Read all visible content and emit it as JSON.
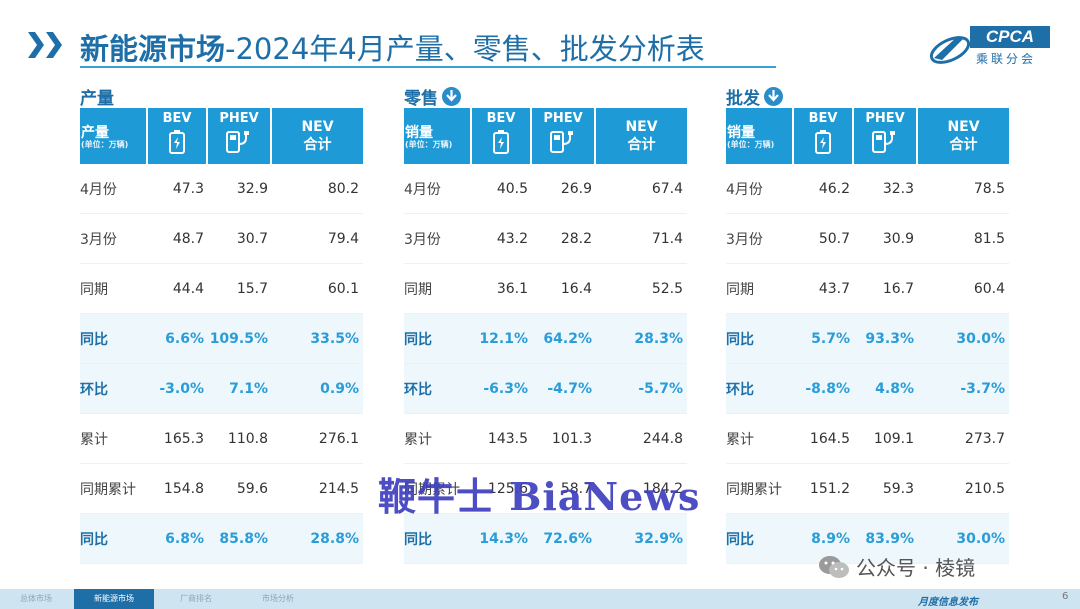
{
  "header": {
    "title_bold": "新能源市场",
    "title_rest": "-2024年4月产量、零售、批发分析表"
  },
  "logo": {
    "text": "CPCA",
    "sub": "乘联分会"
  },
  "colors": {
    "accent": "#1e9ad6",
    "title": "#1e6fa8",
    "highlight_text": "#2a9dd8"
  },
  "columns": {
    "bev": "BEV",
    "phev": "PHEV",
    "nev_top": "NEV",
    "nev_bottom": "合计",
    "unit": "(单位：万辆)"
  },
  "panels": [
    {
      "title": "产量",
      "has_down_icon": false,
      "header_label": "产量",
      "rows": [
        {
          "label": "4月份",
          "bev": "47.3",
          "phev": "32.9",
          "nev": "80.2"
        },
        {
          "label": "3月份",
          "bev": "48.7",
          "phev": "30.7",
          "nev": "79.4"
        },
        {
          "label": "同期",
          "bev": "44.4",
          "phev": "15.7",
          "nev": "60.1"
        },
        {
          "label": "同比",
          "bev": "6.6%",
          "phev": "109.5%",
          "nev": "33.5%"
        },
        {
          "label": "环比",
          "bev": "-3.0%",
          "phev": "7.1%",
          "nev": "0.9%"
        },
        {
          "label": "累计",
          "bev": "165.3",
          "phev": "110.8",
          "nev": "276.1"
        },
        {
          "label": "同期累计",
          "bev": "154.8",
          "phev": "59.6",
          "nev": "214.5"
        },
        {
          "label": "同比",
          "bev": "6.8%",
          "phev": "85.8%",
          "nev": "28.8%"
        }
      ]
    },
    {
      "title": "零售",
      "has_down_icon": true,
      "header_label": "销量",
      "rows": [
        {
          "label": "4月份",
          "bev": "40.5",
          "phev": "26.9",
          "nev": "67.4"
        },
        {
          "label": "3月份",
          "bev": "43.2",
          "phev": "28.2",
          "nev": "71.4"
        },
        {
          "label": "同期",
          "bev": "36.1",
          "phev": "16.4",
          "nev": "52.5"
        },
        {
          "label": "同比",
          "bev": "12.1%",
          "phev": "64.2%",
          "nev": "28.3%"
        },
        {
          "label": "环比",
          "bev": "-6.3%",
          "phev": "-4.7%",
          "nev": "-5.7%"
        },
        {
          "label": "累计",
          "bev": "143.5",
          "phev": "101.3",
          "nev": "244.8"
        },
        {
          "label": "同期累计",
          "bev": "125.6",
          "phev": "58.7",
          "nev": "184.2"
        },
        {
          "label": "同比",
          "bev": "14.3%",
          "phev": "72.6%",
          "nev": "32.9%"
        }
      ]
    },
    {
      "title": "批发",
      "has_down_icon": true,
      "header_label": "销量",
      "rows": [
        {
          "label": "4月份",
          "bev": "46.2",
          "phev": "32.3",
          "nev": "78.5"
        },
        {
          "label": "3月份",
          "bev": "50.7",
          "phev": "30.9",
          "nev": "81.5"
        },
        {
          "label": "同期",
          "bev": "43.7",
          "phev": "16.7",
          "nev": "60.4"
        },
        {
          "label": "同比",
          "bev": "5.7%",
          "phev": "93.3%",
          "nev": "30.0%"
        },
        {
          "label": "环比",
          "bev": "-8.8%",
          "phev": "4.8%",
          "nev": "-3.7%"
        },
        {
          "label": "累计",
          "bev": "164.5",
          "phev": "109.1",
          "nev": "273.7"
        },
        {
          "label": "同期累计",
          "bev": "151.2",
          "phev": "59.3",
          "nev": "210.5"
        },
        {
          "label": "同比",
          "bev": "8.9%",
          "phev": "83.9%",
          "nev": "30.0%"
        }
      ]
    }
  ],
  "highlight_rows": [
    3,
    4,
    7
  ],
  "watermark": "鞭牛士 BiaNews",
  "wechat": "公众号 · 棱镜",
  "footer": {
    "tabs": [
      "总体市场",
      "新能源市场",
      "厂商排名",
      "市场分析"
    ],
    "active_tab": 1,
    "release": "月度信息发布",
    "page": "6"
  }
}
